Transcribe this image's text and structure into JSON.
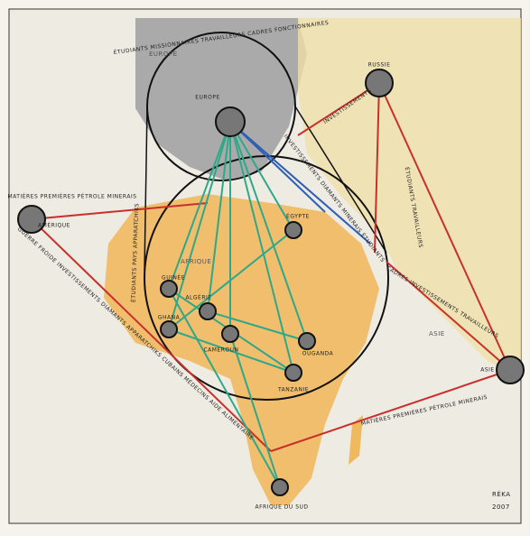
{
  "map": {
    "nodes": [
      {
        "label": "EUROPE"
      },
      {
        "label": "RUSSIE"
      },
      {
        "label": "AMÉRIQUE"
      },
      {
        "label": "ASIE"
      },
      {
        "label": "ÉGYPTE"
      },
      {
        "label": "GUINÉE"
      },
      {
        "label": "ALGÉRIE"
      },
      {
        "label": "GHANA"
      },
      {
        "label": "CAMEROUN"
      },
      {
        "label": "OUGANDA"
      },
      {
        "label": "TANZANIE"
      },
      {
        "label": "AFRIQUE DU SUD"
      }
    ],
    "regions": [
      "EUROPE",
      "AFRIQUE",
      "ASIE"
    ],
    "flows": [
      {
        "label": "ÉTUDIANTS MISSIONNAIRES TRAVAILLEURS CADRES FONCTIONNAIRES"
      },
      {
        "label": "MATIÈRES PREMIÈRES PÉTROLE MINERAIS"
      },
      {
        "label": "ÉTUDIANTS TRAVAILLEURS"
      },
      {
        "label": "INVESTISSEMENTS"
      },
      {
        "label": "CADRES INVESTISSEMENTS TRAVAILLEURS"
      },
      {
        "label": "MATIÈRES PREMIÈRES PÉTROLE MINERAIS"
      },
      {
        "label": "GUERRE FROIDE INVESTISSEMENTS DIAMANTS APPARATCHIKS CUBAINS MÉDECINS AIDE ALIMENTAIRE"
      },
      {
        "label": "ÉTUDIANTS PAYS APPARATCHIKS"
      },
      {
        "label": "INVESTISSEMENTS DIAMANTS MINERAIS ÉTUDIANTS"
      }
    ],
    "signature": [
      "RÉKA",
      "2007"
    ]
  }
}
